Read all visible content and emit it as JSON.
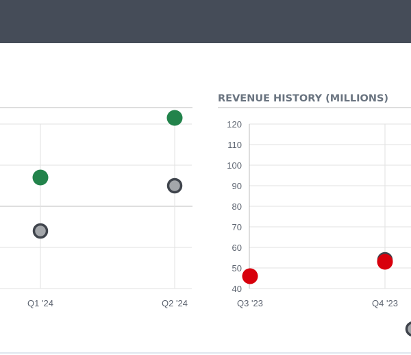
{
  "header": {
    "background": "#454c58"
  },
  "colors": {
    "green": "#22834b",
    "red": "#d8000c",
    "gray_fill": "#a3a6aa",
    "gray_stroke": "#3f444c",
    "grid": "#e2e2e2",
    "axis": "#bcbcbc"
  },
  "chart_data": [
    {
      "type": "scatter",
      "title": "",
      "categories": [
        "Q1 '24",
        "Q2 '24"
      ],
      "series": [
        {
          "color": "green",
          "values": [
            94,
            123
          ]
        },
        {
          "color": "gray",
          "values": [
            68,
            90
          ]
        }
      ],
      "ylim": [
        40,
        120
      ],
      "grid": true
    },
    {
      "type": "scatter",
      "title": "REVENUE HISTORY (MILLIONS)",
      "categories": [
        "Q3 '23",
        "Q4 '23"
      ],
      "series": [
        {
          "color": "gray",
          "values": [
            46,
            54
          ]
        },
        {
          "color": "red",
          "values": [
            46,
            53
          ]
        }
      ],
      "yticks": [
        40,
        50,
        60,
        70,
        80,
        90,
        100,
        110,
        120
      ],
      "ylim": [
        40,
        120
      ],
      "grid": true
    }
  ]
}
